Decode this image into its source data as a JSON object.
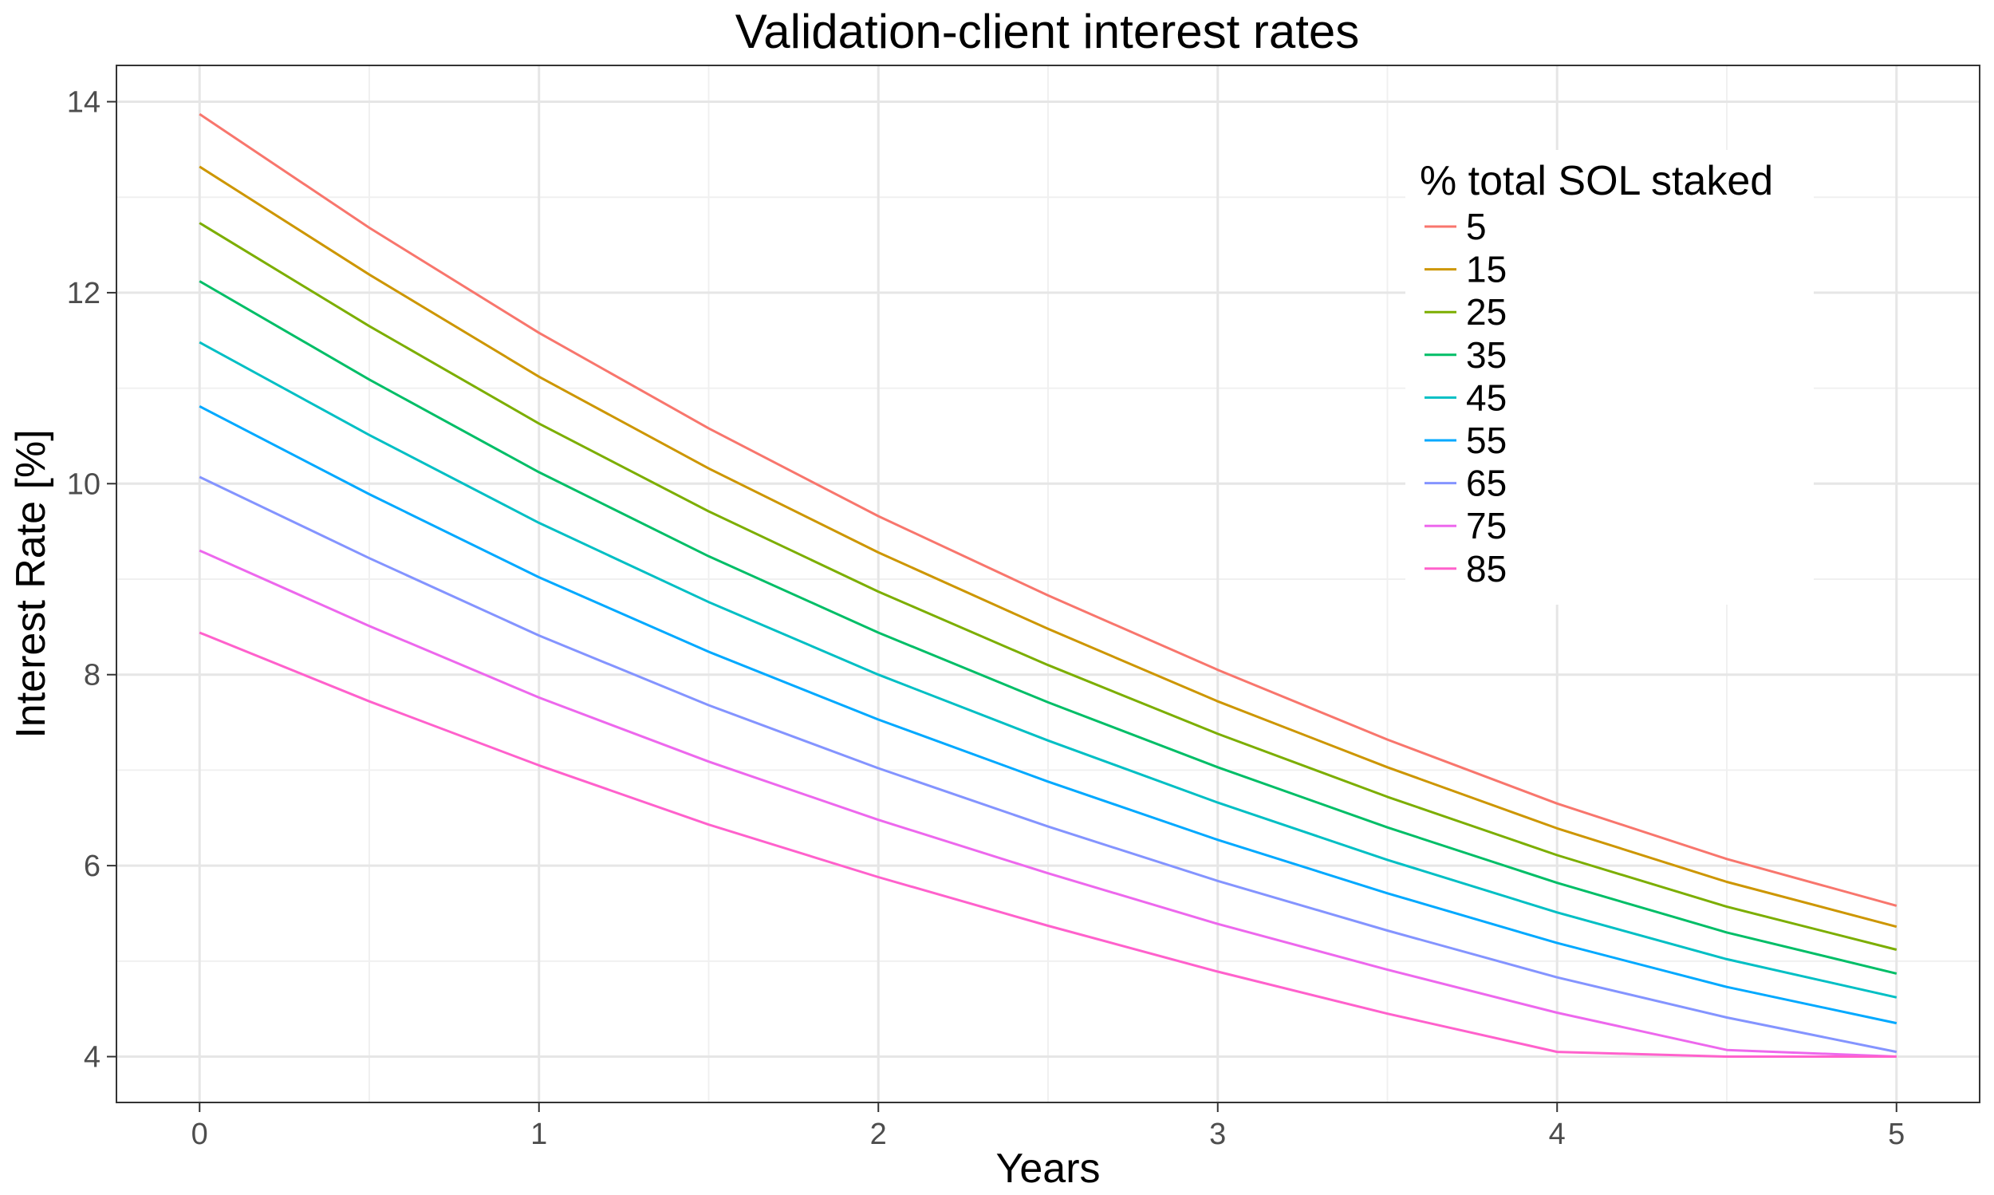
{
  "chart_data": {
    "type": "line",
    "title": "Validation-client interest rates",
    "xlabel": "Years",
    "ylabel": "Interest Rate [%]",
    "xlim": [
      -0.245,
      5.245
    ],
    "ylim": [
      3.52,
      14.38
    ],
    "x_ticks": [
      0,
      1,
      2,
      3,
      4,
      5
    ],
    "y_ticks": [
      4,
      6,
      8,
      10,
      12,
      14
    ],
    "grid": true,
    "legend": {
      "title": "% total SOL staked",
      "placement": "top-right"
    },
    "x": [
      0,
      0.5,
      1,
      1.5,
      2,
      2.5,
      3,
      3.5,
      4,
      4.5,
      5
    ],
    "series": [
      {
        "name": "5",
        "color": "#F8766D",
        "values": [
          13.87,
          12.68,
          11.58,
          10.58,
          9.66,
          8.83,
          8.05,
          7.32,
          6.65,
          6.07,
          5.58
        ]
      },
      {
        "name": "15",
        "color": "#CD9600",
        "values": [
          13.32,
          12.19,
          11.12,
          10.16,
          9.28,
          8.48,
          7.72,
          7.03,
          6.39,
          5.83,
          5.36
        ]
      },
      {
        "name": "25",
        "color": "#7CAE00",
        "values": [
          12.73,
          11.65,
          10.63,
          9.71,
          8.87,
          8.1,
          7.38,
          6.72,
          6.11,
          5.57,
          5.12
        ]
      },
      {
        "name": "35",
        "color": "#00BE67",
        "values": [
          12.12,
          11.09,
          10.12,
          9.24,
          8.44,
          7.71,
          7.03,
          6.4,
          5.82,
          5.3,
          4.87
        ]
      },
      {
        "name": "45",
        "color": "#00BFC4",
        "values": [
          11.48,
          10.51,
          9.59,
          8.76,
          8.0,
          7.31,
          6.66,
          6.06,
          5.51,
          5.02,
          4.62
        ]
      },
      {
        "name": "55",
        "color": "#00A9FF",
        "values": [
          10.81,
          9.89,
          9.02,
          8.24,
          7.53,
          6.88,
          6.27,
          5.71,
          5.19,
          4.73,
          4.35
        ]
      },
      {
        "name": "65",
        "color": "#8494FF",
        "values": [
          10.07,
          9.22,
          8.41,
          7.68,
          7.02,
          6.41,
          5.84,
          5.32,
          4.83,
          4.41,
          4.05
        ]
      },
      {
        "name": "75",
        "color": "#ED68ED",
        "values": [
          9.3,
          8.51,
          7.76,
          7.09,
          6.48,
          5.92,
          5.39,
          4.91,
          4.46,
          4.07,
          4.0
        ]
      },
      {
        "name": "85",
        "color": "#FF61CC",
        "values": [
          8.44,
          7.72,
          7.05,
          6.43,
          5.88,
          5.37,
          4.89,
          4.45,
          4.05,
          4.0,
          4.0
        ]
      }
    ]
  }
}
